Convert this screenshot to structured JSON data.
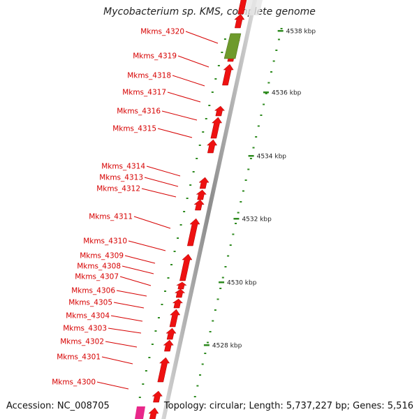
{
  "title": "Mycobacterium sp. KMS, complete genome",
  "accession": "Accession: NC_008705",
  "info": "Topology: circular; Length: 5,737,227 bp; Genes: 5,516",
  "colors": {
    "gene": "#ee1111",
    "gene_alt": "#6e9a2c",
    "gene_pink": "#e8288a",
    "label": "#d60000",
    "tick": "#2d8a1e",
    "backbone": "#9a9a9a"
  },
  "scale": {
    "unit": "kbp",
    "labels": [
      "4538 kbp",
      "4536 kbp",
      "4534 kbp",
      "4532 kbp",
      "4530 kbp",
      "4528 kbp"
    ]
  },
  "genes": [
    "Mkms_4320",
    "Mkms_4319",
    "Mkms_4318",
    "Mkms_4317",
    "Mkms_4316",
    "Mkms_4315",
    "Mkms_4314",
    "Mkms_4313",
    "Mkms_4312",
    "Mkms_4311",
    "Mkms_4310",
    "Mkms_4309",
    "Mkms_4308",
    "Mkms_4307",
    "Mkms_4306",
    "Mkms_4305",
    "Mkms_4304",
    "Mkms_4303",
    "Mkms_4302",
    "Mkms_4301",
    "Mkms_4300"
  ]
}
